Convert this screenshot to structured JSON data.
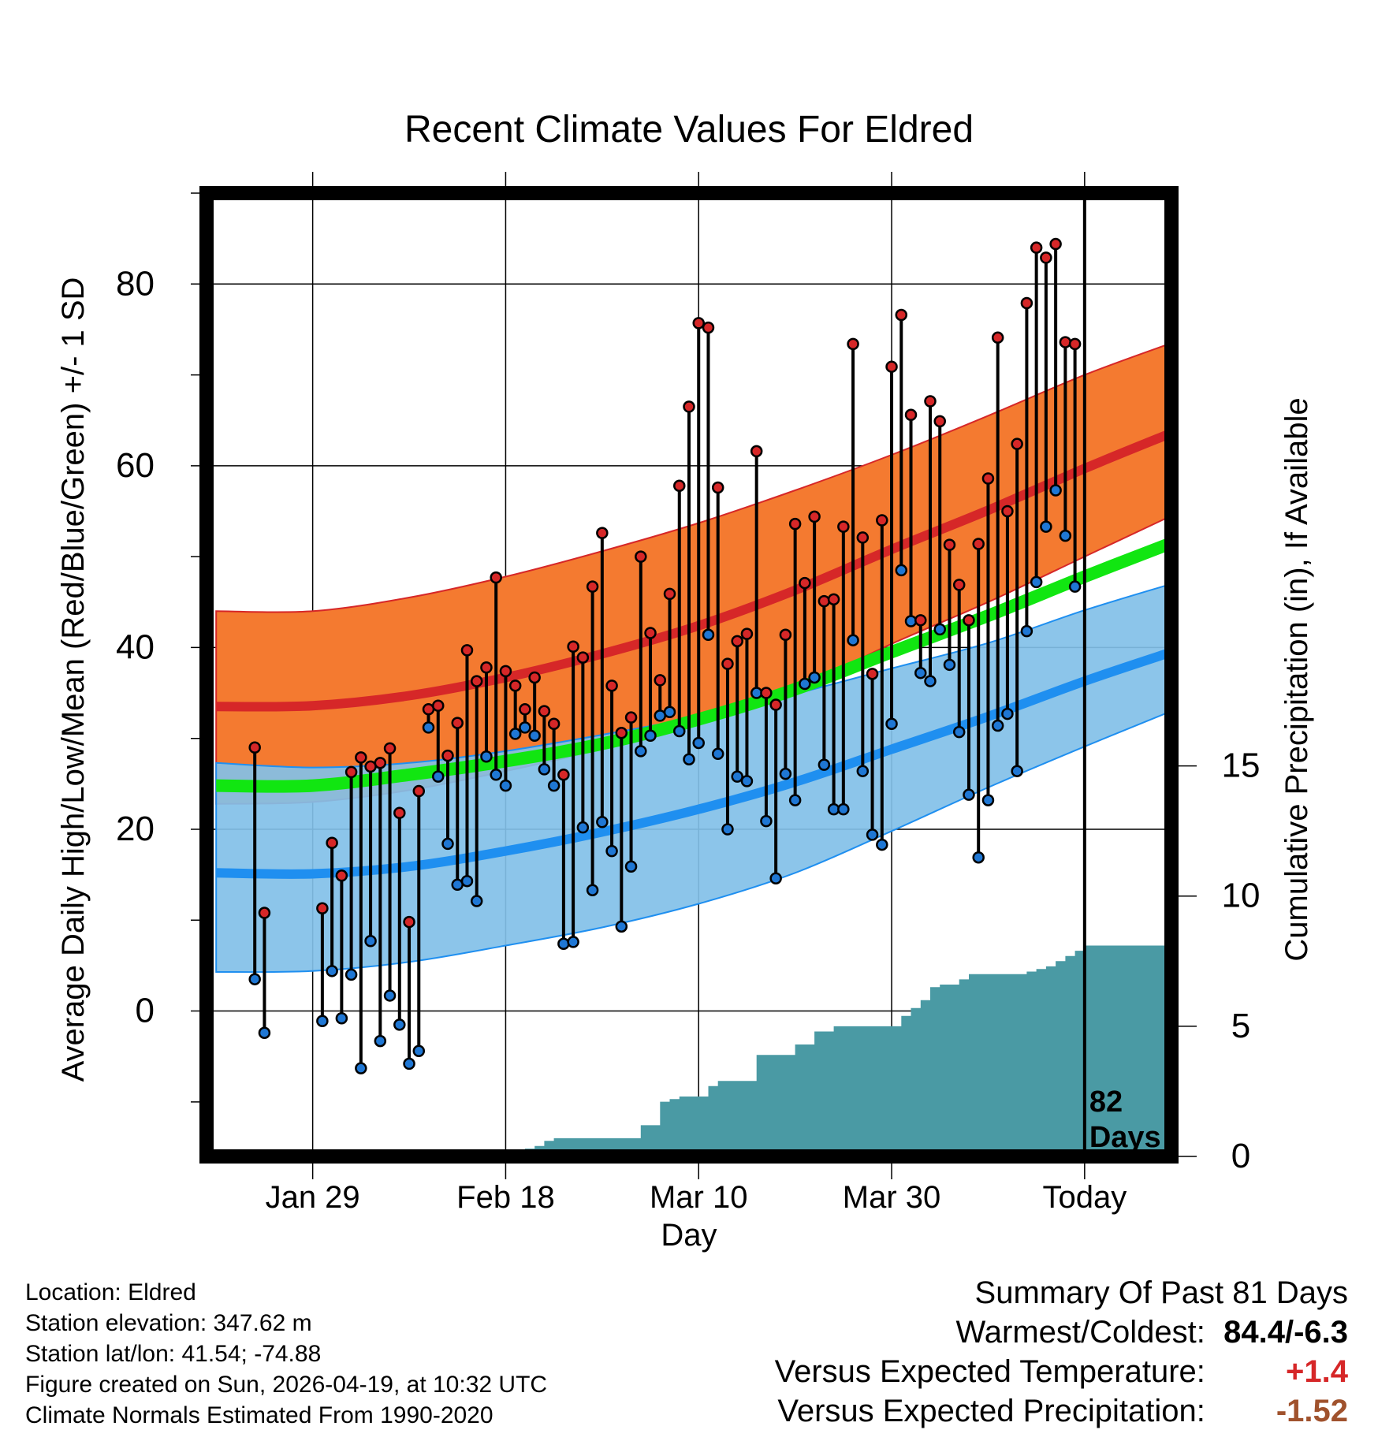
{
  "chart_data": {
    "type": "line",
    "title": "Recent Climate Values For Eldred",
    "xlabel": "Day",
    "ylabel": "Average Daily High/Low/Mean (Red/Blue/Green) +/- 1 SD",
    "y2label": "Cumulative Precipitation (in), If Available",
    "xlim": [
      -11,
      89
    ],
    "ylim": [
      -16,
      90
    ],
    "y2lim": [
      0,
      37
    ],
    "x_ticks": [
      {
        "x": 0,
        "label": "Jan 29"
      },
      {
        "x": 20,
        "label": "Feb 18"
      },
      {
        "x": 40,
        "label": "Mar 10"
      },
      {
        "x": 60,
        "label": "Mar 30"
      },
      {
        "x": 80,
        "label": "Today"
      }
    ],
    "y_ticks": [
      0,
      20,
      40,
      60,
      80
    ],
    "y2_ticks": [
      0,
      5,
      10,
      15
    ],
    "today_x": 80,
    "today_label_line1": "82",
    "today_label_line2": "Days",
    "normals": {
      "x": [
        -10,
        0,
        10,
        20,
        30,
        40,
        50,
        60,
        70,
        80,
        89
      ],
      "high_mean": [
        33.5,
        33.6,
        34.7,
        36.7,
        39.3,
        42.4,
        46.3,
        50.8,
        55.1,
        59.7,
        63.6
      ],
      "high_upper": [
        44.0,
        44.0,
        45.5,
        47.8,
        50.6,
        53.7,
        57.3,
        61.2,
        65.5,
        70.0,
        73.5
      ],
      "high_lower": [
        22.8,
        23.0,
        24.3,
        26.4,
        28.8,
        31.5,
        35.4,
        40.4,
        45.0,
        50.0,
        54.5
      ],
      "low_mean": [
        15.2,
        15.1,
        15.9,
        17.6,
        19.7,
        22.2,
        25.2,
        28.8,
        32.4,
        36.3,
        39.5
      ],
      "low_upper": [
        27.3,
        26.8,
        27.3,
        28.6,
        30.4,
        32.4,
        34.9,
        37.7,
        40.5,
        44.1,
        47.0
      ],
      "low_lower": [
        4.3,
        4.4,
        5.4,
        7.2,
        9.2,
        11.8,
        15.2,
        19.8,
        24.6,
        29.1,
        33.0
      ],
      "mean_mean": [
        24.8,
        24.8,
        26.0,
        27.5,
        29.4,
        32.1,
        35.4,
        39.5,
        43.5,
        47.8,
        51.5
      ]
    },
    "series": [
      {
        "name": "Daily High",
        "color": "#d62728",
        "x": [
          -6,
          -5,
          1,
          2,
          3,
          4,
          5,
          6,
          7,
          8,
          9,
          10,
          11,
          12,
          13,
          14,
          15,
          16,
          17,
          18,
          19,
          20,
          21,
          22,
          23,
          24,
          25,
          26,
          27,
          28,
          29,
          30,
          31,
          32,
          33,
          34,
          35,
          36,
          37,
          38,
          39,
          40,
          41,
          42,
          43,
          44,
          45,
          46,
          47,
          48,
          49,
          50,
          51,
          52,
          53,
          54,
          55,
          56,
          57,
          58,
          59,
          60,
          61,
          62,
          63,
          64,
          65,
          66,
          67,
          68,
          69,
          70,
          71,
          72,
          73,
          74,
          75,
          76,
          77,
          78,
          79
        ],
        "values": [
          29.0,
          10.8,
          11.3,
          18.5,
          14.9,
          26.3,
          27.9,
          26.9,
          27.3,
          28.9,
          21.8,
          9.8,
          24.2,
          33.2,
          33.6,
          28.1,
          31.7,
          39.7,
          36.3,
          37.8,
          47.7,
          37.4,
          35.8,
          33.2,
          36.7,
          33.0,
          31.6,
          26.0,
          40.1,
          38.9,
          46.7,
          52.6,
          35.8,
          30.6,
          32.3,
          50.0,
          41.6,
          36.4,
          45.9,
          57.8,
          66.5,
          75.7,
          75.2,
          57.6,
          38.2,
          40.7,
          41.5,
          61.6,
          35.0,
          33.7,
          41.4,
          53.6,
          47.1,
          54.4,
          45.1,
          45.3,
          53.3,
          73.4,
          52.1,
          37.1,
          54.0,
          70.9,
          76.6,
          65.6,
          43.0,
          67.1,
          64.9,
          51.3,
          46.9,
          43.0,
          51.4,
          58.6,
          74.1,
          55.0,
          62.4,
          77.9,
          84.0,
          82.9,
          84.4,
          73.6,
          73.4
        ]
      },
      {
        "name": "Daily Low",
        "color": "#1f77d4",
        "x": [
          -6,
          -5,
          1,
          2,
          3,
          4,
          5,
          6,
          7,
          8,
          9,
          10,
          11,
          12,
          13,
          14,
          15,
          16,
          17,
          18,
          19,
          20,
          21,
          22,
          23,
          24,
          25,
          26,
          27,
          28,
          29,
          30,
          31,
          32,
          33,
          34,
          35,
          36,
          37,
          38,
          39,
          40,
          41,
          42,
          43,
          44,
          45,
          46,
          47,
          48,
          49,
          50,
          51,
          52,
          53,
          54,
          55,
          56,
          57,
          58,
          59,
          60,
          61,
          62,
          63,
          64,
          65,
          66,
          67,
          68,
          69,
          70,
          71,
          72,
          73,
          74,
          75,
          76,
          77,
          78,
          79
        ],
        "values": [
          3.5,
          -2.4,
          -1.1,
          4.4,
          -0.8,
          4.0,
          -6.3,
          7.7,
          -3.3,
          1.7,
          -1.5,
          -5.8,
          -4.4,
          31.2,
          25.8,
          18.4,
          13.9,
          14.3,
          12.1,
          28.0,
          26.0,
          24.8,
          30.5,
          31.2,
          30.3,
          26.6,
          24.8,
          7.4,
          7.6,
          20.2,
          13.3,
          20.8,
          17.6,
          9.3,
          15.9,
          28.6,
          30.3,
          32.5,
          32.9,
          30.8,
          27.7,
          29.5,
          41.4,
          28.3,
          20.0,
          25.8,
          25.3,
          35.0,
          20.9,
          14.6,
          26.1,
          23.2,
          36.0,
          36.7,
          27.1,
          22.2,
          22.2,
          40.8,
          26.4,
          19.4,
          18.3,
          31.6,
          48.5,
          42.9,
          37.2,
          36.3,
          42.0,
          38.1,
          30.7,
          23.8,
          16.9,
          23.2,
          31.4,
          32.7,
          26.4,
          41.8,
          47.2,
          53.3,
          57.3,
          52.3,
          46.7
        ]
      },
      {
        "name": "Cumulative Precipitation",
        "color": "#4a9aa4",
        "x": [
          19.5,
          21,
          22,
          23,
          24,
          25,
          26,
          27,
          28,
          29,
          30,
          31,
          32,
          33,
          34,
          35,
          36,
          37,
          38,
          39,
          40,
          41,
          42,
          43,
          44,
          45,
          46,
          47,
          48,
          49,
          50,
          51,
          52,
          53,
          54,
          55,
          56,
          57,
          58,
          59,
          60,
          61,
          62,
          63,
          64,
          65,
          66,
          67,
          68,
          69,
          70,
          71,
          72,
          73,
          74,
          75,
          76,
          77,
          78,
          79,
          80,
          89
        ],
        "values": [
          0.0,
          0.2,
          0.3,
          0.4,
          0.6,
          0.7,
          0.7,
          0.7,
          0.7,
          0.7,
          0.7,
          0.7,
          0.7,
          0.7,
          1.2,
          1.2,
          2.1,
          2.2,
          2.3,
          2.3,
          2.3,
          2.7,
          2.9,
          2.9,
          2.9,
          2.9,
          3.9,
          3.9,
          3.9,
          3.9,
          4.3,
          4.3,
          4.8,
          4.8,
          5.0,
          5.0,
          5.0,
          5.0,
          5.0,
          5.0,
          5.0,
          5.4,
          5.7,
          6.0,
          6.5,
          6.6,
          6.6,
          6.8,
          7.0,
          7.0,
          7.0,
          7.0,
          7.0,
          7.0,
          7.1,
          7.2,
          7.3,
          7.5,
          7.7,
          7.9,
          8.1,
          8.1
        ]
      }
    ]
  },
  "footer": {
    "location": "Location: Eldred",
    "elevation": "Station elevation: 347.62 m",
    "latlon": "Station lat/lon: 41.54; -74.88",
    "created": "Figure created on Sun, 2026-04-19, at 10:32 UTC",
    "normals": "Climate Normals Estimated From 1990-2020"
  },
  "summary": {
    "heading": "Summary Of Past 81 Days",
    "warmest_label": "Warmest/Coldest:",
    "warmest_value": "84.4/-6.3",
    "temp_label": "Versus Expected Temperature:",
    "temp_value": "+1.4",
    "temp_color": "#d62728",
    "precip_label": "Versus Expected Precipitation:",
    "precip_value": "-1.52",
    "precip_color": "#a0522d"
  }
}
